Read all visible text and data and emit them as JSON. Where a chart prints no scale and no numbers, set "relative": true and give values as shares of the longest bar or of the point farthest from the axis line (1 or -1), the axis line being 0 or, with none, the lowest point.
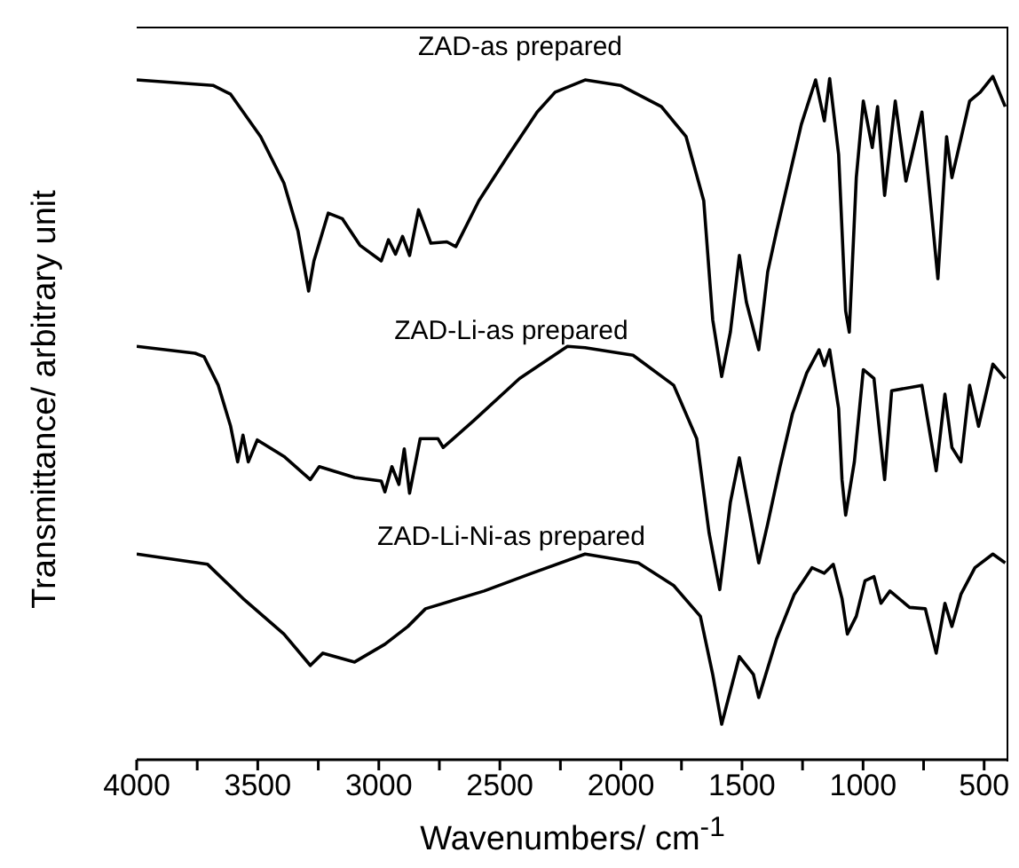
{
  "chart_data": {
    "type": "line",
    "relative": true,
    "xlabel": "Wavenumbers/ cm$^{-1}$",
    "ylabel": "Transmittance/ arbitrary unit",
    "xlim": [
      4000,
      400
    ],
    "xticks": [
      4000,
      {
        "value": 3750,
        "label": null
      },
      3500,
      {
        "value": 3250,
        "label": null
      },
      3000,
      {
        "value": 2750,
        "label": null
      },
      2500,
      {
        "value": 2250,
        "label": null
      },
      2000,
      {
        "value": 1750,
        "label": null
      },
      1500,
      {
        "value": 1250,
        "label": null
      },
      1000,
      {
        "value": 750,
        "label": null
      },
      500
    ],
    "marker": "none",
    "line_style": "solid",
    "series": [
      {
        "name": "ZAD-as prepared",
        "color": "#000000",
        "x": [
          4000,
          3685,
          3612,
          3488,
          3392,
          3334,
          3290,
          3268,
          3209,
          3151,
          3078,
          2990,
          2960,
          2931,
          2902,
          2873,
          2836,
          2785,
          2719,
          2682,
          2587,
          2463,
          2346,
          2272,
          2148,
          2002,
          1833,
          1731,
          1658,
          1621,
          1584,
          1548,
          1511,
          1482,
          1431,
          1394,
          1357,
          1306,
          1255,
          1196,
          1160,
          1138,
          1101,
          1072,
          1057,
          1028,
          999,
          962,
          940,
          911,
          867,
          823,
          757,
          691,
          655,
          633,
          560,
          516,
          464,
          413
        ],
        "values": [
          0.995,
          0.987,
          0.974,
          0.912,
          0.844,
          0.774,
          0.686,
          0.73,
          0.8,
          0.792,
          0.753,
          0.73,
          0.761,
          0.74,
          0.766,
          0.738,
          0.805,
          0.756,
          0.758,
          0.751,
          0.818,
          0.886,
          0.948,
          0.977,
          0.995,
          0.987,
          0.956,
          0.912,
          0.818,
          0.644,
          0.561,
          0.626,
          0.738,
          0.67,
          0.6,
          0.714,
          0.774,
          0.852,
          0.93,
          0.995,
          0.935,
          0.997,
          0.886,
          0.657,
          0.626,
          0.852,
          0.964,
          0.896,
          0.956,
          0.826,
          0.964,
          0.847,
          0.948,
          0.704,
          0.912,
          0.852,
          0.964,
          0.977,
          1,
          0.956
        ]
      },
      {
        "name": "ZAD-Li-as prepared",
        "color": "#000000",
        "x": [
          4000,
          3759,
          3722,
          3663,
          3612,
          3583,
          3561,
          3539,
          3502,
          3392,
          3283,
          3246,
          3100,
          2990,
          2975,
          2946,
          2917,
          2895,
          2873,
          2829,
          2756,
          2734,
          2609,
          2419,
          2221,
          2148,
          1950,
          1782,
          1687,
          1636,
          1592,
          1548,
          1511,
          1467,
          1431,
          1394,
          1343,
          1292,
          1233,
          1182,
          1160,
          1138,
          1101,
          1087,
          1072,
          1036,
          999,
          955,
          911,
          882,
          757,
          698,
          662,
          633,
          596,
          560,
          523,
          464,
          413
        ],
        "values": [
          0.605,
          0.595,
          0.59,
          0.548,
          0.488,
          0.436,
          0.475,
          0.436,
          0.468,
          0.444,
          0.41,
          0.429,
          0.413,
          0.408,
          0.392,
          0.429,
          0.403,
          0.455,
          0.39,
          0.47,
          0.47,
          0.457,
          0.496,
          0.558,
          0.605,
          0.603,
          0.592,
          0.548,
          0.47,
          0.332,
          0.249,
          0.377,
          0.442,
          0.358,
          0.288,
          0.345,
          0.429,
          0.506,
          0.566,
          0.6,
          0.577,
          0.6,
          0.514,
          0.41,
          0.358,
          0.436,
          0.571,
          0.558,
          0.41,
          0.54,
          0.548,
          0.423,
          0.535,
          0.457,
          0.436,
          0.548,
          0.488,
          0.579,
          0.558
        ]
      },
      {
        "name": "ZAD-Li-Ni-as prepared",
        "color": "#000000",
        "x": [
          4000,
          3707,
          3561,
          3392,
          3283,
          3231,
          3100,
          2975,
          2880,
          2807,
          2565,
          2368,
          2148,
          1928,
          1782,
          1672,
          1621,
          1584,
          1511,
          1453,
          1431,
          1357,
          1284,
          1211,
          1160,
          1123,
          1087,
          1065,
          1028,
          992,
          955,
          926,
          889,
          808,
          743,
          698,
          662,
          633,
          596,
          538,
          464,
          413
        ],
        "values": [
          0.301,
          0.286,
          0.236,
          0.184,
          0.138,
          0.156,
          0.143,
          0.169,
          0.195,
          0.221,
          0.247,
          0.273,
          0.301,
          0.288,
          0.255,
          0.21,
          0.125,
          0.052,
          0.151,
          0.125,
          0.091,
          0.177,
          0.242,
          0.281,
          0.273,
          0.286,
          0.236,
          0.184,
          0.21,
          0.262,
          0.268,
          0.229,
          0.247,
          0.223,
          0.221,
          0.156,
          0.229,
          0.195,
          0.242,
          0.281,
          0.301,
          0.288
        ]
      }
    ]
  }
}
